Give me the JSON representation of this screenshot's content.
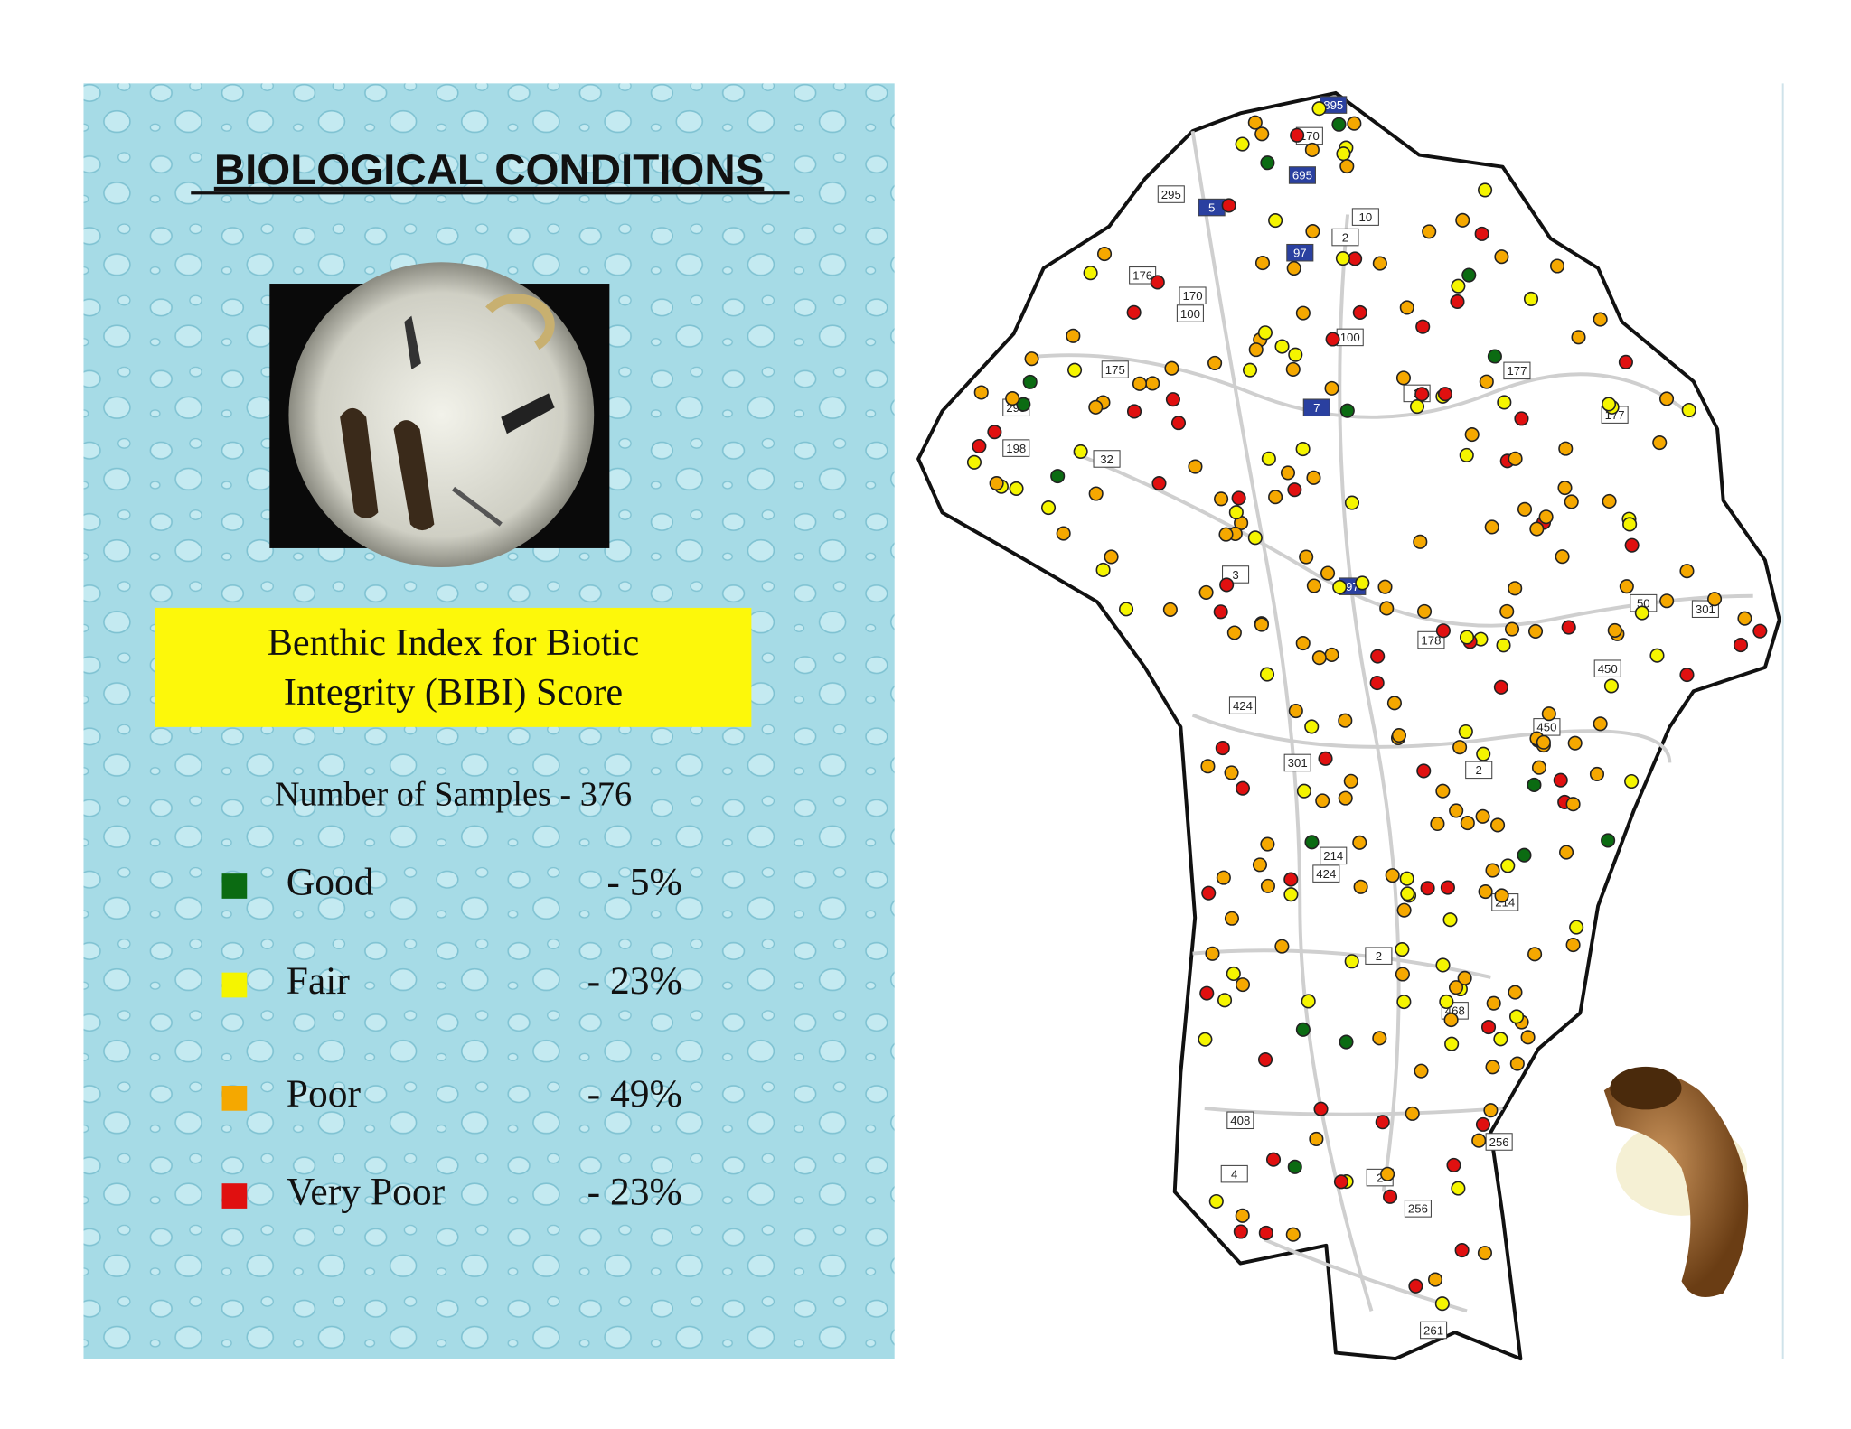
{
  "header": {
    "title": "BIOLOGICAL CONDITIONS"
  },
  "index_box": {
    "lines": [
      "Benthic Index for Biotic",
      "Integrity (BIBI) Score"
    ]
  },
  "samples": "Number of Samples - 376",
  "legend": [
    {
      "label": "Good",
      "percent": "- 5%",
      "color": "#0b6b12"
    },
    {
      "label": "Fair",
      "percent": "- 23%",
      "color": "#f5f500"
    },
    {
      "label": "Poor",
      "percent": "- 49%",
      "color": "#f5a800"
    },
    {
      "label": "Very Poor",
      "percent": "- 23%",
      "color": "#e01010"
    }
  ],
  "map": {
    "routes": [
      "895",
      "170",
      "695",
      "10",
      "2",
      "295",
      "5",
      "97",
      "176",
      "170",
      "100",
      "100",
      "175",
      "295",
      "198",
      "32",
      "2",
      "177",
      "177",
      "7",
      "3",
      "97",
      "178",
      "50",
      "301",
      "450",
      "424",
      "301",
      "450",
      "2",
      "214",
      "424",
      "214",
      "2",
      "468",
      "408",
      "256",
      "4",
      "2",
      "256",
      "261"
    ]
  }
}
